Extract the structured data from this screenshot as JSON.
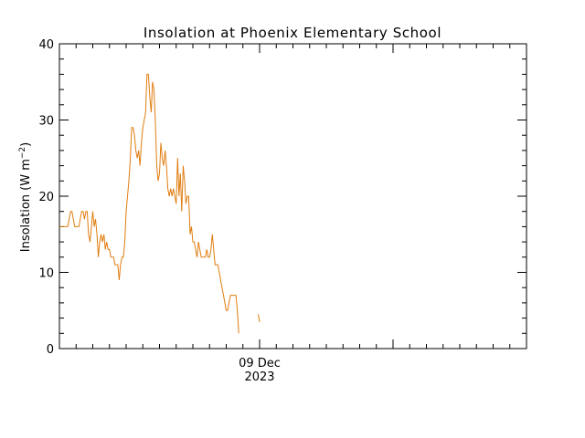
{
  "chart_data": {
    "type": "line",
    "title": "Insolation at Phoenix Elementary School",
    "ylabel": "Insolation (W m",
    "ylabel_sup": "−2",
    "ylabel_end": ")",
    "ylim": [
      0,
      40
    ],
    "yticks": [
      0,
      10,
      20,
      30,
      40
    ],
    "y_minor_step": 2,
    "xlim_hours": [
      -72,
      96
    ],
    "x_ticks": [
      {
        "hour": 0,
        "label": "09 Dec",
        "label2": "2023"
      },
      {
        "hour": 48,
        "label": "",
        "label2": ""
      }
    ],
    "x_unit_note": "hours relative to 09 Dec 2023 00:00",
    "grid": false,
    "legend": "none",
    "line_color": "#e07d10",
    "series": [
      {
        "segments": [
          [
            [
              -72.0,
              16
            ],
            [
              -71.0,
              16
            ],
            [
              -70.0,
              16
            ],
            [
              -69.0,
              16
            ],
            [
              -68.5,
              17
            ],
            [
              -68.0,
              18
            ],
            [
              -67.5,
              18
            ],
            [
              -67.0,
              17
            ],
            [
              -66.5,
              16
            ],
            [
              -65.0,
              16
            ],
            [
              -64.5,
              17
            ],
            [
              -64.0,
              18
            ],
            [
              -63.5,
              18
            ],
            [
              -63.0,
              17
            ],
            [
              -62.5,
              18
            ],
            [
              -62.0,
              18
            ],
            [
              -61.5,
              15
            ],
            [
              -61.0,
              14
            ],
            [
              -60.5,
              16
            ],
            [
              -60.0,
              18
            ],
            [
              -59.5,
              16
            ],
            [
              -59.0,
              17
            ],
            [
              -58.5,
              15
            ],
            [
              -58.0,
              12
            ],
            [
              -57.5,
              14
            ],
            [
              -57.0,
              15
            ],
            [
              -56.5,
              14
            ],
            [
              -56.0,
              15
            ],
            [
              -55.5,
              13
            ],
            [
              -55.0,
              14
            ],
            [
              -54.5,
              13
            ],
            [
              -54.0,
              13
            ],
            [
              -53.5,
              12
            ],
            [
              -53.0,
              12
            ],
            [
              -52.5,
              12
            ],
            [
              -52.0,
              11
            ],
            [
              -51.5,
              11
            ],
            [
              -51.0,
              11
            ],
            [
              -50.5,
              9
            ],
            [
              -50.0,
              11
            ],
            [
              -49.5,
              12
            ],
            [
              -49.0,
              12
            ],
            [
              -48.5,
              14
            ],
            [
              -48.0,
              18
            ],
            [
              -47.5,
              20
            ],
            [
              -47.0,
              22
            ],
            [
              -46.5,
              25
            ],
            [
              -46.0,
              29
            ],
            [
              -45.5,
              29
            ],
            [
              -45.0,
              28
            ],
            [
              -44.5,
              26
            ],
            [
              -44.0,
              25
            ],
            [
              -43.5,
              26
            ],
            [
              -43.0,
              24
            ],
            [
              -42.5,
              27
            ],
            [
              -42.0,
              29
            ],
            [
              -41.5,
              30
            ],
            [
              -41.0,
              31
            ],
            [
              -40.5,
              36
            ],
            [
              -40.0,
              36
            ],
            [
              -39.5,
              33
            ],
            [
              -39.0,
              31
            ],
            [
              -38.5,
              35
            ],
            [
              -38.0,
              34
            ],
            [
              -37.5,
              30
            ],
            [
              -37.0,
              24
            ],
            [
              -36.5,
              22
            ],
            [
              -36.0,
              23
            ],
            [
              -35.5,
              27
            ],
            [
              -35.0,
              25
            ],
            [
              -34.5,
              24
            ],
            [
              -34.0,
              26
            ],
            [
              -33.5,
              24
            ],
            [
              -33.0,
              21
            ],
            [
              -32.5,
              20
            ],
            [
              -32.0,
              21
            ],
            [
              -31.5,
              20
            ],
            [
              -31.0,
              21
            ],
            [
              -30.5,
              20
            ],
            [
              -30.0,
              19
            ],
            [
              -29.5,
              25
            ],
            [
              -29.0,
              20
            ],
            [
              -28.5,
              23
            ],
            [
              -28.0,
              18
            ],
            [
              -27.5,
              24
            ],
            [
              -27.0,
              22
            ],
            [
              -26.5,
              19
            ],
            [
              -26.0,
              20
            ],
            [
              -25.5,
              20
            ],
            [
              -25.0,
              15
            ],
            [
              -24.5,
              16
            ],
            [
              -24.0,
              14
            ],
            [
              -23.5,
              14
            ],
            [
              -23.0,
              13
            ],
            [
              -22.5,
              12
            ],
            [
              -22.0,
              14
            ],
            [
              -21.5,
              13
            ],
            [
              -21.0,
              12
            ],
            [
              -20.5,
              12
            ],
            [
              -20.0,
              12
            ],
            [
              -19.5,
              12
            ],
            [
              -19.0,
              13
            ],
            [
              -18.5,
              12
            ],
            [
              -18.0,
              12
            ],
            [
              -17.5,
              13
            ],
            [
              -17.0,
              15
            ],
            [
              -16.5,
              13
            ],
            [
              -16.0,
              11
            ],
            [
              -15.5,
              11
            ],
            [
              -15.0,
              11
            ],
            [
              -14.5,
              10
            ],
            [
              -14.0,
              9
            ],
            [
              -13.5,
              8
            ],
            [
              -13.0,
              7
            ],
            [
              -12.5,
              6
            ],
            [
              -12.0,
              5
            ],
            [
              -11.5,
              5
            ],
            [
              -11.0,
              6
            ],
            [
              -10.5,
              7
            ],
            [
              -10.0,
              7
            ],
            [
              -9.5,
              7
            ],
            [
              -9.0,
              7
            ],
            [
              -8.5,
              7
            ],
            [
              -8.0,
              5
            ],
            [
              -7.5,
              2
            ]
          ],
          [
            [
              -0.5,
              4.5
            ],
            [
              0.0,
              3.5
            ]
          ]
        ]
      }
    ]
  }
}
